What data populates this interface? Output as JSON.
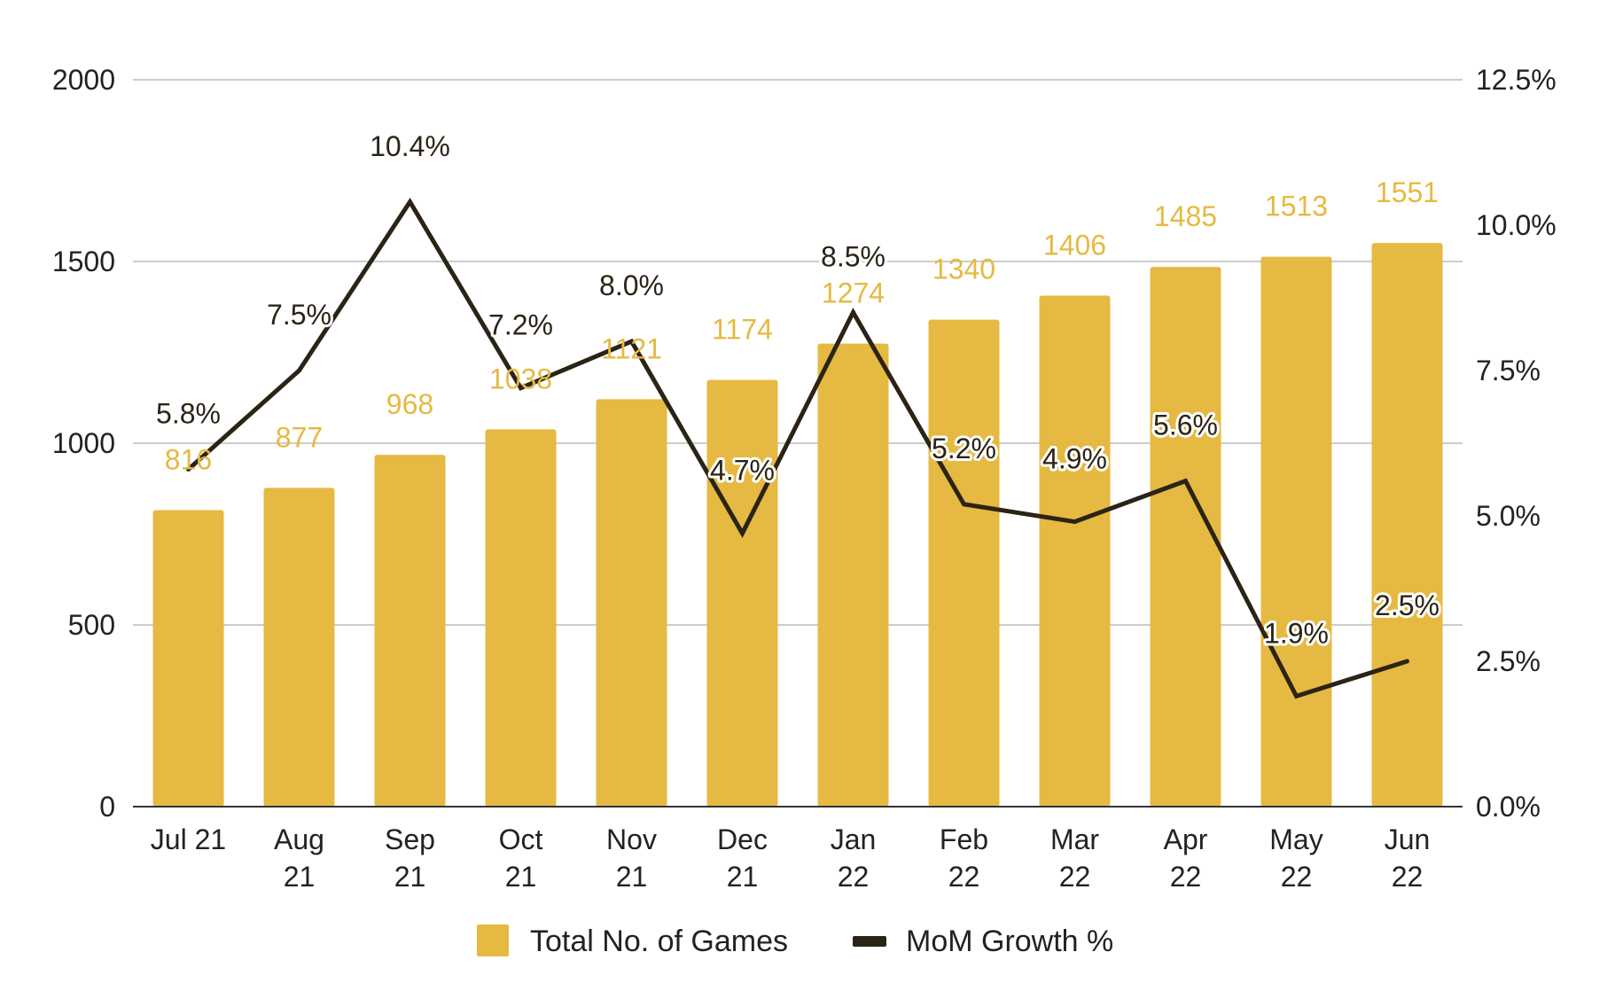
{
  "chart_data": {
    "type": "bar",
    "categories": [
      [
        "Jul 21"
      ],
      [
        "Aug",
        "21"
      ],
      [
        "Sep",
        "21"
      ],
      [
        "Oct",
        "21"
      ],
      [
        "Nov",
        "21"
      ],
      [
        "Dec",
        "21"
      ],
      [
        "Jan",
        "22"
      ],
      [
        "Feb",
        "22"
      ],
      [
        "Mar",
        "22"
      ],
      [
        "Apr",
        "22"
      ],
      [
        "May",
        "22"
      ],
      [
        "Jun",
        "22"
      ]
    ],
    "series": [
      {
        "name": "Total No. of Games",
        "type": "bar",
        "axis": "left",
        "color": "#e6b942",
        "values": [
          816,
          877,
          968,
          1038,
          1121,
          1174,
          1274,
          1340,
          1406,
          1485,
          1513,
          1551
        ],
        "labels": [
          "816",
          "877",
          "968",
          "1038",
          "1121",
          "1174",
          "1274",
          "1340",
          "1406",
          "1485",
          "1513",
          "1551"
        ]
      },
      {
        "name": "MoM Growth %",
        "type": "line",
        "axis": "right",
        "color": "#2b2416",
        "values": [
          5.8,
          7.5,
          10.4,
          7.2,
          8.0,
          4.7,
          8.5,
          5.2,
          4.9,
          5.6,
          1.9,
          2.5
        ],
        "labels": [
          "5.8%",
          "7.5%",
          "10.4%",
          "7.2%",
          "8.0%",
          "4.7%",
          "8.5%",
          "5.2%",
          "4.9%",
          "5.6%",
          "1.9%",
          "2.5%"
        ]
      }
    ],
    "left_axis": {
      "min": 0,
      "max": 2000,
      "ticks": [
        0,
        500,
        1000,
        1500,
        2000
      ],
      "tick_labels": [
        "0",
        "500",
        "1000",
        "1500",
        "2000"
      ]
    },
    "right_axis": {
      "min": 0,
      "max": 12.5,
      "ticks": [
        0,
        2.5,
        5,
        7.5,
        10,
        12.5
      ],
      "tick_labels": [
        "0.0%",
        "2.5%",
        "5.0%",
        "7.5%",
        "10.0%",
        "12.5%"
      ]
    },
    "grid": true,
    "legend_position": "bottom",
    "gridline_color": "#cccccc",
    "axis_color": "#333333"
  }
}
